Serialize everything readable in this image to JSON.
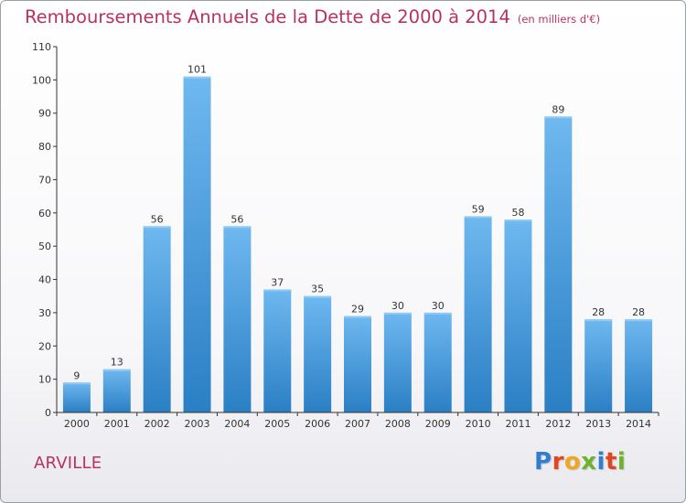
{
  "header": {
    "title": "Remboursements Annuels de la Dette de 2000 à 2014",
    "subtitle": "(en milliers d'€)"
  },
  "commune": "ARVILLE",
  "logo_text": "Proxiti",
  "colors": {
    "title": "#b8325d",
    "bar_light": "#6fb8f0",
    "bar_dark": "#2a7fc4",
    "axis": "#333333"
  },
  "chart_data": {
    "type": "bar",
    "title": "Remboursements Annuels de la Dette de 2000 à 2014",
    "subtitle": "(en milliers d'€)",
    "xlabel": "",
    "ylabel": "",
    "categories": [
      "2000",
      "2001",
      "2002",
      "2003",
      "2004",
      "2005",
      "2006",
      "2007",
      "2008",
      "2009",
      "2010",
      "2011",
      "2012",
      "2013",
      "2014"
    ],
    "values": [
      9,
      13,
      56,
      101,
      56,
      37,
      35,
      29,
      30,
      30,
      59,
      58,
      89,
      28,
      28
    ],
    "ylim": [
      0,
      110
    ],
    "yticks": [
      0,
      10,
      20,
      30,
      40,
      50,
      60,
      70,
      80,
      90,
      100,
      110
    ],
    "grid": false,
    "data_labels": true
  }
}
